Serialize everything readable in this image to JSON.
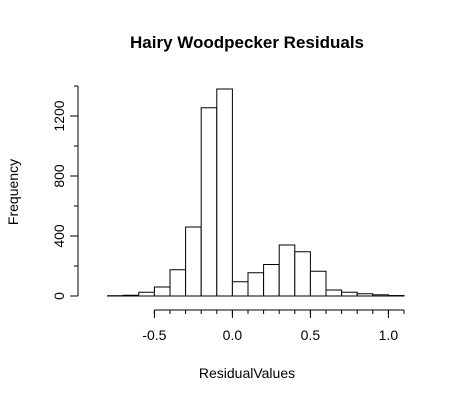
{
  "chart_data": {
    "type": "bar",
    "subtype": "histogram",
    "title": "Hairy Woodpecker Residuals",
    "xlabel": "ResidualValues",
    "ylabel": "Frequency",
    "bin_width": 0.1,
    "bins": [
      {
        "start": -0.9,
        "end": -0.8,
        "count": 0
      },
      {
        "start": -0.8,
        "end": -0.7,
        "count": 2
      },
      {
        "start": -0.7,
        "end": -0.6,
        "count": 5
      },
      {
        "start": -0.6,
        "end": -0.5,
        "count": 25
      },
      {
        "start": -0.5,
        "end": -0.4,
        "count": 60
      },
      {
        "start": -0.4,
        "end": -0.3,
        "count": 175
      },
      {
        "start": -0.3,
        "end": -0.2,
        "count": 460
      },
      {
        "start": -0.2,
        "end": -0.1,
        "count": 1255
      },
      {
        "start": -0.1,
        "end": 0.0,
        "count": 1380
      },
      {
        "start": 0.0,
        "end": 0.1,
        "count": 95
      },
      {
        "start": 0.1,
        "end": 0.2,
        "count": 155
      },
      {
        "start": 0.2,
        "end": 0.3,
        "count": 210
      },
      {
        "start": 0.3,
        "end": 0.4,
        "count": 340
      },
      {
        "start": 0.4,
        "end": 0.5,
        "count": 295
      },
      {
        "start": 0.5,
        "end": 0.6,
        "count": 165
      },
      {
        "start": 0.6,
        "end": 0.7,
        "count": 40
      },
      {
        "start": 0.7,
        "end": 0.8,
        "count": 25
      },
      {
        "start": 0.8,
        "end": 0.9,
        "count": 15
      },
      {
        "start": 0.9,
        "end": 1.0,
        "count": 8
      },
      {
        "start": 1.0,
        "end": 1.1,
        "count": 3
      }
    ],
    "xlim": [
      -0.9,
      1.1
    ],
    "ylim": [
      0,
      1400
    ],
    "x_ticks": [
      -0.5,
      0.0,
      0.5,
      1.0
    ],
    "x_tick_labels": [
      "-0.5",
      "0.0",
      "0.5",
      "1.0"
    ],
    "x_minor_ticks": [
      -0.5,
      -0.4,
      -0.3,
      -0.2,
      -0.1,
      0.0,
      0.1,
      0.2,
      0.3,
      0.4,
      0.5,
      0.6,
      0.7,
      0.8,
      0.9,
      1.0,
      1.1
    ],
    "y_ticks": [
      0,
      400,
      800,
      1200
    ],
    "y_tick_labels": [
      "0",
      "400",
      "800",
      "1200"
    ],
    "y_minor_ticks": [
      0,
      200,
      400,
      600,
      800,
      1000,
      1200,
      1400
    ],
    "grid": false,
    "legend": "none",
    "bar_fill": "#ffffff",
    "bar_stroke": "#000000"
  }
}
